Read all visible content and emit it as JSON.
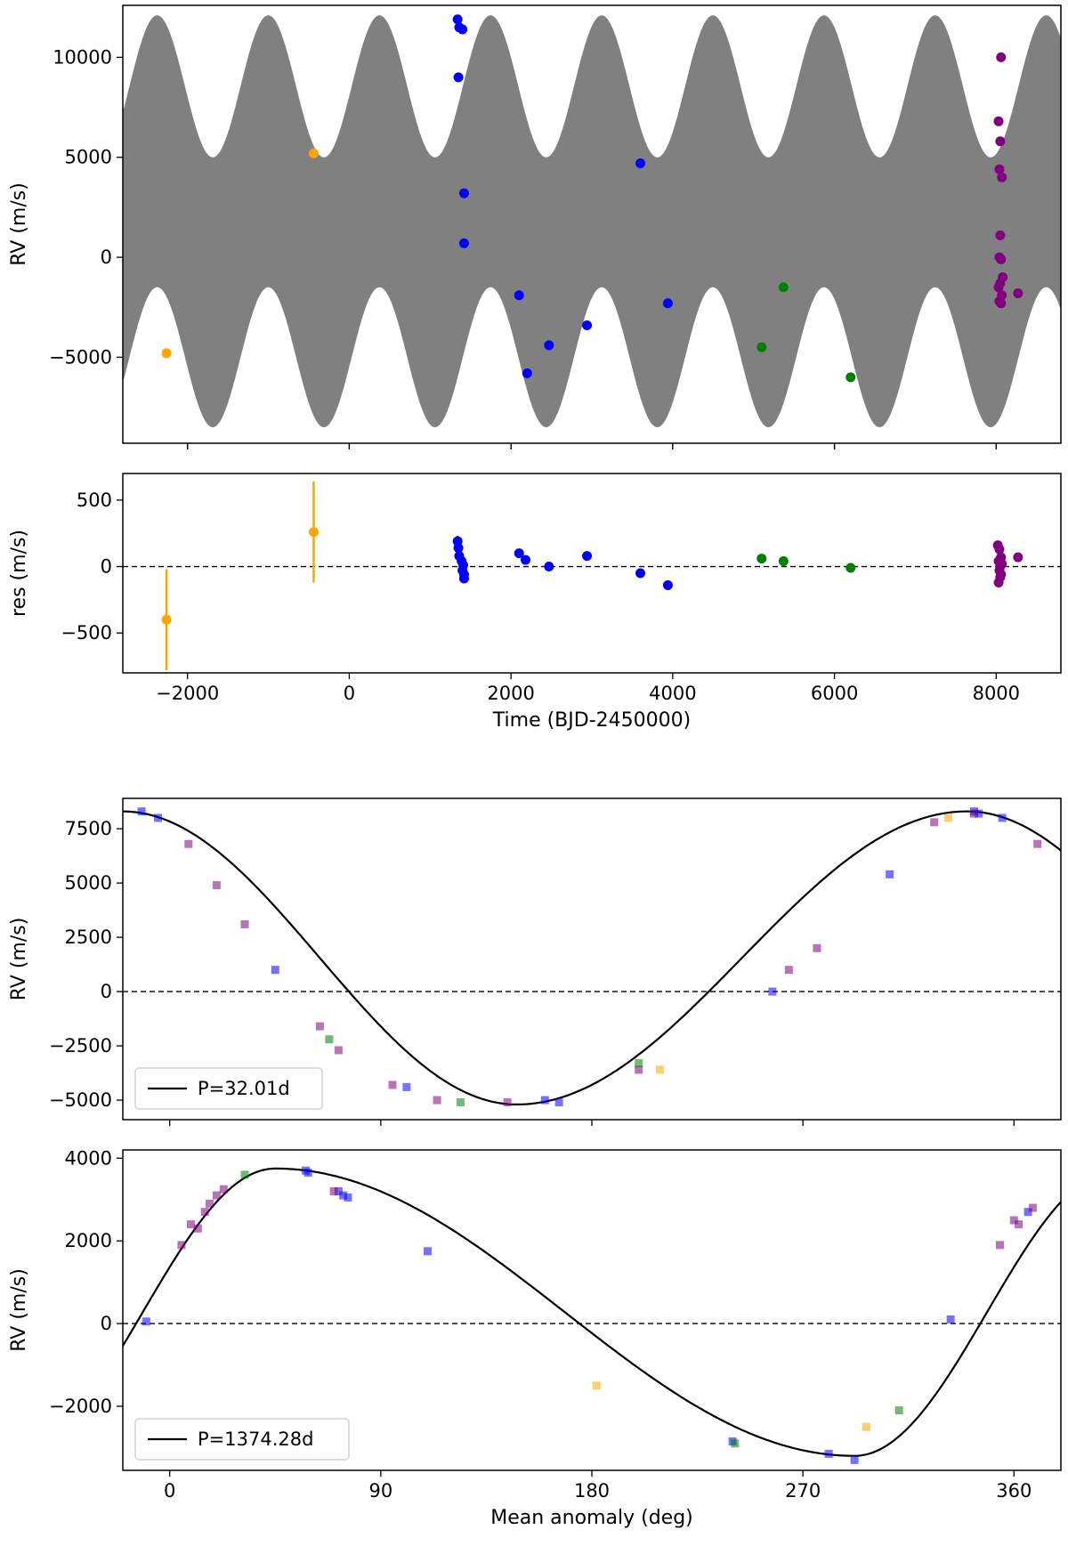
{
  "chart_data": [
    {
      "type": "scatter",
      "panel": "rv-time",
      "xlabel": "",
      "ylabel": "RV (m/s)",
      "xlim": [
        -2800,
        8800
      ],
      "ylim": [
        -9300,
        12600
      ],
      "xticks": [
        -2000,
        0,
        2000,
        4000,
        6000,
        8000
      ],
      "yticks": [
        -5000,
        0,
        5000,
        10000
      ],
      "ytick_labels": [
        "−5000",
        "0",
        "5000",
        "10000"
      ],
      "model_band": {
        "color": "#808080",
        "description_points": "envelope of the two-planet RV model",
        "upper_max": 12100,
        "upper_min": 5000,
        "lower_max": -1500,
        "lower_min": -8500,
        "long_period_days": 1374.28
      },
      "series": [
        {
          "color": "#ffa500",
          "points": [
            [
              -2260,
              -4800
            ],
            [
              -440,
              5200
            ]
          ]
        },
        {
          "color": "#0000ff",
          "points": [
            [
              1340,
              11900
            ],
            [
              1350,
              9000
            ],
            [
              1360,
              11500
            ],
            [
              1400,
              11400
            ],
            [
              1420,
              3200
            ],
            [
              1420,
              700
            ],
            [
              2100,
              -1900
            ],
            [
              2200,
              -5800
            ],
            [
              2470,
              -4400
            ],
            [
              2940,
              -3400
            ],
            [
              3600,
              4700
            ],
            [
              3940,
              -2300
            ]
          ]
        },
        {
          "color": "#008000",
          "points": [
            [
              5100,
              -4500
            ],
            [
              5370,
              -1500
            ],
            [
              6200,
              -6000
            ]
          ]
        },
        {
          "color": "#800080",
          "points": [
            [
              8030,
              6800
            ],
            [
              8050,
              5800
            ],
            [
              8060,
              10000
            ],
            [
              8040,
              4400
            ],
            [
              8070,
              4000
            ],
            [
              8050,
              1100
            ],
            [
              8040,
              0
            ],
            [
              8060,
              -100
            ],
            [
              8050,
              -1300
            ],
            [
              8080,
              -1000
            ],
            [
              8030,
              -1500
            ],
            [
              8070,
              -1900
            ],
            [
              8040,
              -2200
            ],
            [
              8060,
              -2300
            ],
            [
              8270,
              -1800
            ]
          ]
        }
      ]
    },
    {
      "type": "scatter",
      "panel": "residuals",
      "xlabel": "Time (BJD-2450000)",
      "ylabel": "res (m/s)",
      "xlim": [
        -2800,
        8800
      ],
      "ylim": [
        -800,
        700
      ],
      "xticks": [
        -2000,
        0,
        2000,
        4000,
        6000,
        8000
      ],
      "xtick_labels": [
        "−2000",
        "0",
        "2000",
        "4000",
        "6000",
        "8000"
      ],
      "yticks": [
        -500,
        0,
        500
      ],
      "ytick_labels": [
        "−500",
        "0",
        "500"
      ],
      "series": [
        {
          "color": "#ffa500",
          "points": [
            [
              -2260,
              -400,
              380
            ],
            [
              -440,
              260,
              380
            ]
          ]
        },
        {
          "color": "#0000ff",
          "points": [
            [
              1340,
              190,
              40
            ],
            [
              1350,
              140,
              20
            ],
            [
              1360,
              80,
              20
            ],
            [
              1390,
              40,
              20
            ],
            [
              1410,
              10,
              20
            ],
            [
              1400,
              -30,
              20
            ],
            [
              1420,
              -60,
              20
            ],
            [
              1420,
              -90,
              20
            ],
            [
              2100,
              100,
              15
            ],
            [
              2180,
              50,
              15
            ],
            [
              2470,
              0,
              15
            ],
            [
              2940,
              80,
              15
            ],
            [
              3600,
              -50,
              15
            ],
            [
              3940,
              -140,
              15
            ]
          ]
        },
        {
          "color": "#008000",
          "points": [
            [
              5100,
              60,
              15
            ],
            [
              5370,
              40,
              15
            ],
            [
              6200,
              -10,
              15
            ]
          ]
        },
        {
          "color": "#800080",
          "points": [
            [
              8020,
              160,
              10
            ],
            [
              8040,
              130,
              10
            ],
            [
              8060,
              70,
              10
            ],
            [
              8030,
              40,
              10
            ],
            [
              8070,
              20,
              10
            ],
            [
              8050,
              0,
              10
            ],
            [
              8040,
              -30,
              10
            ],
            [
              8060,
              -60,
              10
            ],
            [
              8050,
              -80,
              10
            ],
            [
              8030,
              -120,
              10
            ],
            [
              8270,
              70,
              10
            ]
          ]
        }
      ]
    },
    {
      "type": "line",
      "panel": "phase-b",
      "xlabel": "",
      "ylabel": "RV (m/s)",
      "xlim": [
        -20,
        380
      ],
      "ylim": [
        -5900,
        8900
      ],
      "yticks": [
        -5000,
        -2500,
        0,
        2500,
        5000,
        7500
      ],
      "ytick_labels": [
        "−5000",
        "−2500",
        "0",
        "2500",
        "5000",
        "7500"
      ],
      "legend": "P=32.01d",
      "legend_position": "lower-left",
      "model": {
        "period_days": 32.01,
        "peak": 8300,
        "peak_phase": 340,
        "trough": -5200,
        "trough_phase": 148,
        "zero_phase": 46
      },
      "series": [
        {
          "color": "#0000ff",
          "points": [
            [
              -12,
              8300
            ],
            [
              -5,
              8000
            ],
            [
              45,
              1000
            ],
            [
              101,
              -4400
            ],
            [
              160,
              -5000
            ],
            [
              166,
              -5100
            ],
            [
              257,
              0
            ],
            [
              307,
              5400
            ],
            [
              343,
              8300
            ],
            [
              345,
              8200
            ],
            [
              355,
              8000
            ]
          ]
        },
        {
          "color": "#800080",
          "points": [
            [
              8,
              6800
            ],
            [
              20,
              4900
            ],
            [
              32,
              3100
            ],
            [
              64,
              -1600
            ],
            [
              72,
              -2700
            ],
            [
              95,
              -4300
            ],
            [
              114,
              -5000
            ],
            [
              144,
              -5100
            ],
            [
              200,
              -3600
            ],
            [
              264,
              1000
            ],
            [
              276,
              2000
            ],
            [
              326,
              7800
            ],
            [
              343,
              8200
            ],
            [
              370,
              6800
            ]
          ]
        },
        {
          "color": "#008000",
          "points": [
            [
              68,
              -2200
            ],
            [
              124,
              -5100
            ],
            [
              200,
              -3300
            ]
          ]
        },
        {
          "color": "#ffa500",
          "points": [
            [
              209,
              -3600
            ],
            [
              332,
              8000
            ]
          ]
        }
      ]
    },
    {
      "type": "line",
      "panel": "phase-c",
      "xlabel": "Mean anomaly (deg)",
      "ylabel": "RV (m/s)",
      "xlim": [
        -20,
        380
      ],
      "ylim": [
        -3550,
        4200
      ],
      "xticks": [
        0,
        90,
        180,
        270,
        360
      ],
      "xtick_labels": [
        "0",
        "90",
        "180",
        "270",
        "360"
      ],
      "yticks": [
        -2000,
        0,
        2000,
        4000
      ],
      "ytick_labels": [
        "−2000",
        "0",
        "2000",
        "4000"
      ],
      "legend": "P=1374.28d",
      "legend_position": "lower-left",
      "model": {
        "period_days": 1374.28,
        "peak": 3750,
        "peak_phase": 45,
        "trough": -3200,
        "trough_phase": 292,
        "zero_phase": 155
      },
      "series": [
        {
          "color": "#0000ff",
          "points": [
            [
              -10,
              50
            ],
            [
              58,
              3700
            ],
            [
              59,
              3650
            ],
            [
              72,
              3200
            ],
            [
              74,
              3100
            ],
            [
              76,
              3050
            ],
            [
              110,
              1750
            ],
            [
              240,
              -2850
            ],
            [
              281,
              -3150
            ],
            [
              292,
              -3300
            ],
            [
              333,
              100
            ],
            [
              366,
              2700
            ]
          ]
        },
        {
          "color": "#800080",
          "points": [
            [
              5,
              1900
            ],
            [
              9,
              2400
            ],
            [
              12,
              2300
            ],
            [
              15,
              2700
            ],
            [
              17,
              2900
            ],
            [
              20,
              3100
            ],
            [
              23,
              3250
            ],
            [
              70,
              3200
            ],
            [
              354,
              1900
            ],
            [
              360,
              2500
            ],
            [
              362,
              2400
            ],
            [
              368,
              2800
            ]
          ]
        },
        {
          "color": "#008000",
          "points": [
            [
              32,
              3600
            ],
            [
              241,
              -2900
            ],
            [
              311,
              -2100
            ]
          ]
        },
        {
          "color": "#ffa500",
          "points": [
            [
              182,
              -1500
            ],
            [
              297,
              -2500
            ]
          ]
        }
      ]
    }
  ]
}
